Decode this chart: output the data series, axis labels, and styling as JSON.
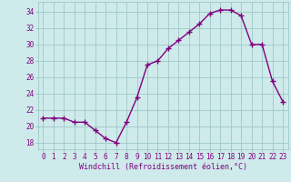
{
  "x": [
    0,
    1,
    2,
    3,
    4,
    5,
    6,
    7,
    8,
    9,
    10,
    11,
    12,
    13,
    14,
    15,
    16,
    17,
    18,
    19,
    20,
    21,
    22,
    23
  ],
  "y": [
    21.0,
    21.0,
    21.0,
    20.5,
    20.5,
    19.5,
    18.5,
    18.0,
    20.5,
    23.5,
    27.5,
    28.0,
    29.5,
    30.5,
    31.5,
    32.5,
    33.8,
    34.2,
    34.2,
    33.5,
    30.0,
    30.0,
    25.5,
    23.0
  ],
  "line_color": "#800080",
  "marker": "+",
  "marker_size": 4,
  "marker_linewidth": 1.0,
  "bg_color": "#ceeaea",
  "grid_color": "#a0c8c8",
  "xlabel": "Windchill (Refroidissement éolien,°C)",
  "ylabel_ticks": [
    18,
    20,
    22,
    24,
    26,
    28,
    30,
    32,
    34
  ],
  "xtick_labels": [
    "0",
    "1",
    "2",
    "3",
    "4",
    "5",
    "6",
    "7",
    "8",
    "9",
    "10",
    "11",
    "12",
    "13",
    "14",
    "15",
    "16",
    "17",
    "18",
    "19",
    "20",
    "21",
    "22",
    "23"
  ],
  "xlim": [
    -0.5,
    23.5
  ],
  "ylim": [
    17.2,
    35.2
  ],
  "tick_color": "#800080",
  "tick_fontsize": 5.5,
  "xlabel_fontsize": 6.0,
  "line_width": 1.0
}
